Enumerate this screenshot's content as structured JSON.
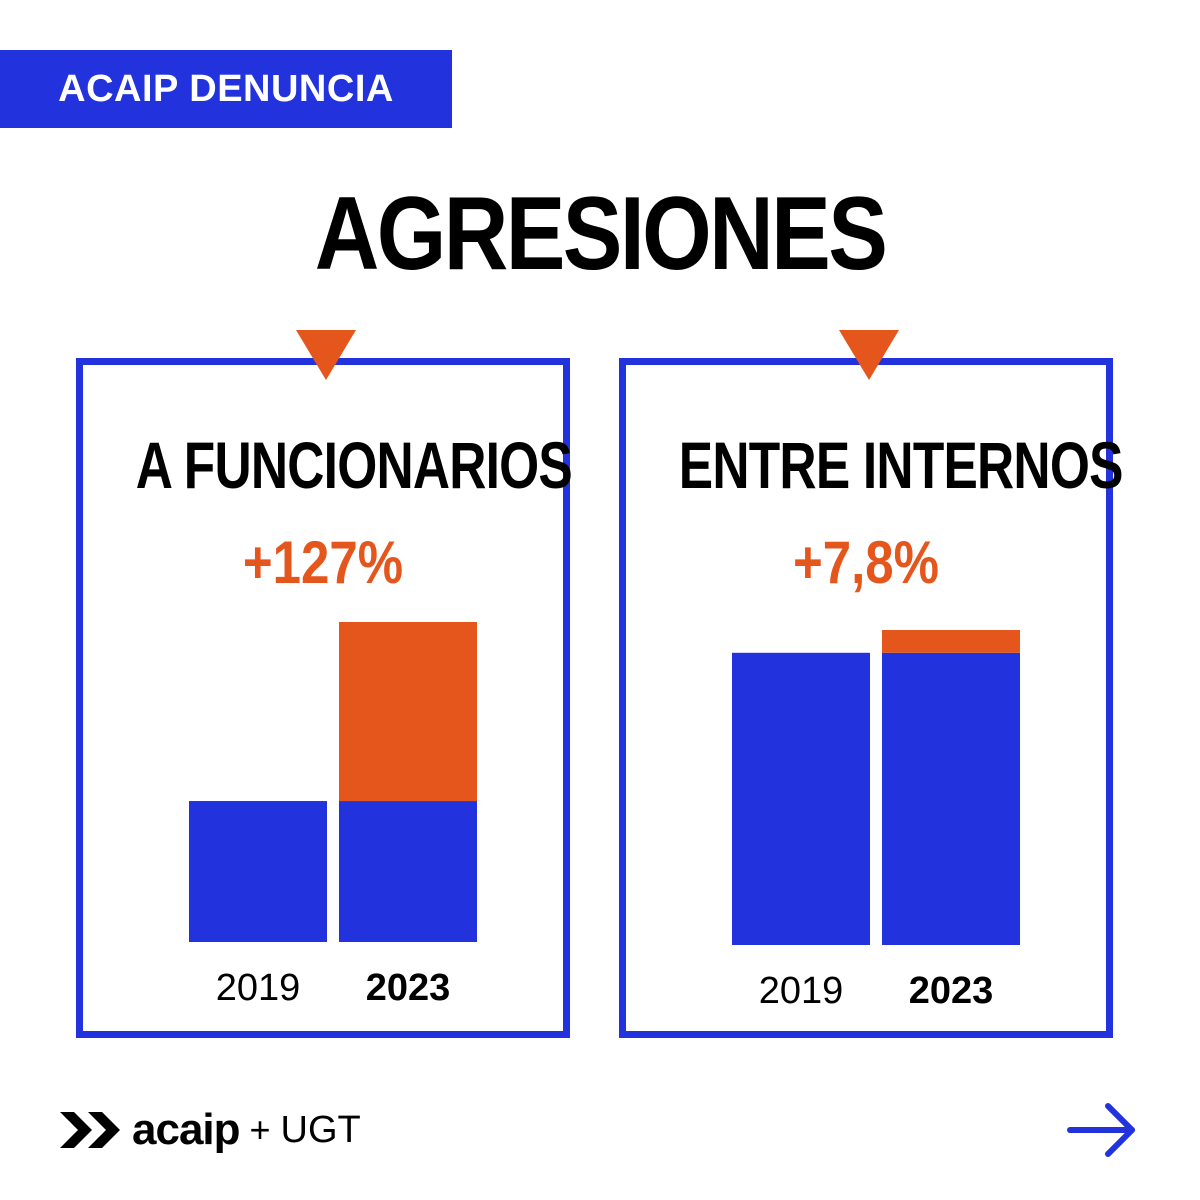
{
  "header": {
    "tag": "ACAIP DENUNCIA",
    "title": "AGRESIONES"
  },
  "colors": {
    "blue": "#2233dd",
    "orange": "#e5561d",
    "black": "#000000",
    "white": "#ffffff"
  },
  "panels": [
    {
      "title": "A FUNCIONARIOS",
      "change": "+127%"
    },
    {
      "title": "ENTRE INTERNOS",
      "change": "+7,8%"
    }
  ],
  "chart_data": [
    {
      "type": "bar",
      "stacked": true,
      "categories": [
        "2019",
        "2023"
      ],
      "series": [
        {
          "values": [
            100,
            100
          ]
        },
        {
          "values": [
            0,
            127
          ]
        }
      ],
      "bold_categories": [
        "2023"
      ],
      "annotations": [
        "+127%"
      ],
      "title": "A FUNCIONARIOS",
      "xlabel": "",
      "ylabel": "",
      "ylim": [
        0,
        227
      ],
      "grid": false
    },
    {
      "type": "bar",
      "stacked": true,
      "categories": [
        "2019",
        "2023"
      ],
      "series": [
        {
          "values": [
            100,
            100
          ]
        },
        {
          "values": [
            0,
            7.8
          ]
        }
      ],
      "bold_categories": [
        "2023"
      ],
      "annotations": [
        "+7,8%"
      ],
      "title": "ENTRE INTERNOS",
      "xlabel": "",
      "ylabel": "",
      "ylim": [
        0,
        107.8
      ],
      "grid": false
    }
  ],
  "footer": {
    "logo_icon": "double-chevron-icon",
    "brand": "acaip",
    "plus": "+",
    "partner": "UGT",
    "next_icon": "arrow-right-icon"
  }
}
